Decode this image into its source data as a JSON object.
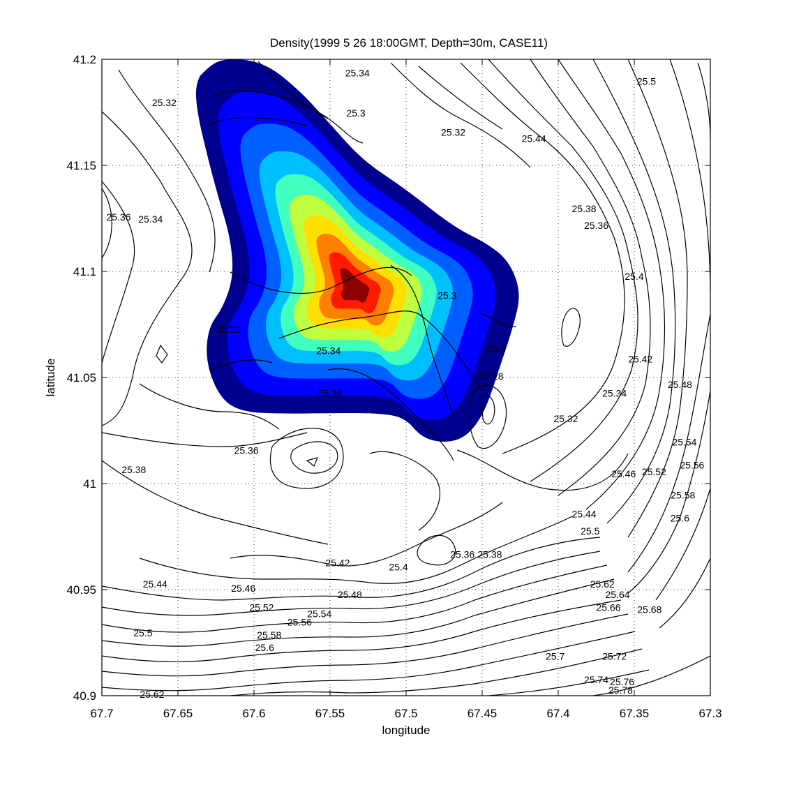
{
  "chart_data": {
    "type": "contour",
    "title": "Density(1999   5   26 18:00GMT, Depth=30m, CASE11)",
    "xlabel": "longitude",
    "ylabel": "latitude",
    "xlim": [
      67.7,
      67.3
    ],
    "ylim": [
      40.9,
      41.2
    ],
    "x_ticks": [
      "67.7",
      "67.65",
      "67.6",
      "67.55",
      "67.5",
      "67.45",
      "67.4",
      "67.35",
      "67.3"
    ],
    "y_ticks": [
      "41.2",
      "41.15",
      "41.1",
      "41.05",
      "41",
      "40.95",
      "40.9"
    ],
    "grid": true,
    "filled_field": {
      "colors": [
        "#00008f",
        "#0000ff",
        "#0060ff",
        "#00bfff",
        "#40ffbf",
        "#bfff40",
        "#ffdf00",
        "#ff8000",
        "#ff1a00",
        "#8b0000"
      ],
      "peak": {
        "x": 67.528,
        "y": 41.093
      }
    },
    "contour_labels": [
      {
        "text": "25.32",
        "x": 67.659,
        "y": 41.178
      },
      {
        "text": "25.34",
        "x": 67.532,
        "y": 41.192
      },
      {
        "text": "25.3",
        "x": 67.533,
        "y": 41.173
      },
      {
        "text": "25.32",
        "x": 67.469,
        "y": 41.164
      },
      {
        "text": "25.44",
        "x": 67.416,
        "y": 41.161
      },
      {
        "text": "25.5",
        "x": 67.342,
        "y": 41.188
      },
      {
        "text": "25.36",
        "x": 67.689,
        "y": 41.124
      },
      {
        "text": "25.34",
        "x": 67.668,
        "y": 41.123
      },
      {
        "text": "25.38",
        "x": 67.383,
        "y": 41.128
      },
      {
        "text": "25.36",
        "x": 67.375,
        "y": 41.12
      },
      {
        "text": "25.4",
        "x": 67.35,
        "y": 41.096
      },
      {
        "text": "25.3",
        "x": 67.473,
        "y": 41.087
      },
      {
        "text": "25.32",
        "x": 67.617,
        "y": 41.071
      },
      {
        "text": "25.34",
        "x": 67.551,
        "y": 41.061
      },
      {
        "text": "25.3",
        "x": 67.441,
        "y": 41.062
      },
      {
        "text": "25.28",
        "x": 67.444,
        "y": 41.049
      },
      {
        "text": "25.42",
        "x": 67.346,
        "y": 41.057
      },
      {
        "text": "25.48",
        "x": 67.32,
        "y": 41.045
      },
      {
        "text": "25.34",
        "x": 67.363,
        "y": 41.041
      },
      {
        "text": "25.36",
        "x": 67.55,
        "y": 41.041
      },
      {
        "text": "25.32",
        "x": 67.395,
        "y": 41.029
      },
      {
        "text": "25.36",
        "x": 67.605,
        "y": 41.014
      },
      {
        "text": "25.54",
        "x": 67.317,
        "y": 41.018
      },
      {
        "text": "25.56",
        "x": 67.312,
        "y": 41.007
      },
      {
        "text": "25.38",
        "x": 67.679,
        "y": 41.005
      },
      {
        "text": "25.46",
        "x": 67.357,
        "y": 41.003
      },
      {
        "text": "25.52",
        "x": 67.337,
        "y": 41.004
      },
      {
        "text": "25.58",
        "x": 67.318,
        "y": 40.993
      },
      {
        "text": "25.44",
        "x": 67.383,
        "y": 40.984
      },
      {
        "text": "25.6",
        "x": 67.32,
        "y": 40.982
      },
      {
        "text": "25.5",
        "x": 67.379,
        "y": 40.976
      },
      {
        "text": "25.36",
        "x": 67.463,
        "y": 40.965
      },
      {
        "text": "25.38",
        "x": 67.445,
        "y": 40.965
      },
      {
        "text": "25.42",
        "x": 67.545,
        "y": 40.961
      },
      {
        "text": "25.4",
        "x": 67.505,
        "y": 40.959
      },
      {
        "text": "25.44",
        "x": 67.665,
        "y": 40.951
      },
      {
        "text": "25.46",
        "x": 67.607,
        "y": 40.949
      },
      {
        "text": "25.48",
        "x": 67.537,
        "y": 40.946
      },
      {
        "text": "25.62",
        "x": 67.371,
        "y": 40.951
      },
      {
        "text": "25.64",
        "x": 67.361,
        "y": 40.946
      },
      {
        "text": "25.66",
        "x": 67.367,
        "y": 40.94
      },
      {
        "text": "25.68",
        "x": 67.34,
        "y": 40.939
      },
      {
        "text": "25.52",
        "x": 67.595,
        "y": 40.94
      },
      {
        "text": "25.54",
        "x": 67.557,
        "y": 40.937
      },
      {
        "text": "25.56",
        "x": 67.57,
        "y": 40.933
      },
      {
        "text": "25.5",
        "x": 67.673,
        "y": 40.928
      },
      {
        "text": "25.58",
        "x": 67.59,
        "y": 40.927
      },
      {
        "text": "25.6",
        "x": 67.593,
        "y": 40.921
      },
      {
        "text": "25.7",
        "x": 67.402,
        "y": 40.917
      },
      {
        "text": "25.72",
        "x": 67.363,
        "y": 40.917
      },
      {
        "text": "25.74",
        "x": 67.375,
        "y": 40.906
      },
      {
        "text": "25.76",
        "x": 67.358,
        "y": 40.905
      },
      {
        "text": "25.78",
        "x": 67.359,
        "y": 40.901
      },
      {
        "text": "25.62",
        "x": 67.667,
        "y": 40.899
      }
    ]
  }
}
